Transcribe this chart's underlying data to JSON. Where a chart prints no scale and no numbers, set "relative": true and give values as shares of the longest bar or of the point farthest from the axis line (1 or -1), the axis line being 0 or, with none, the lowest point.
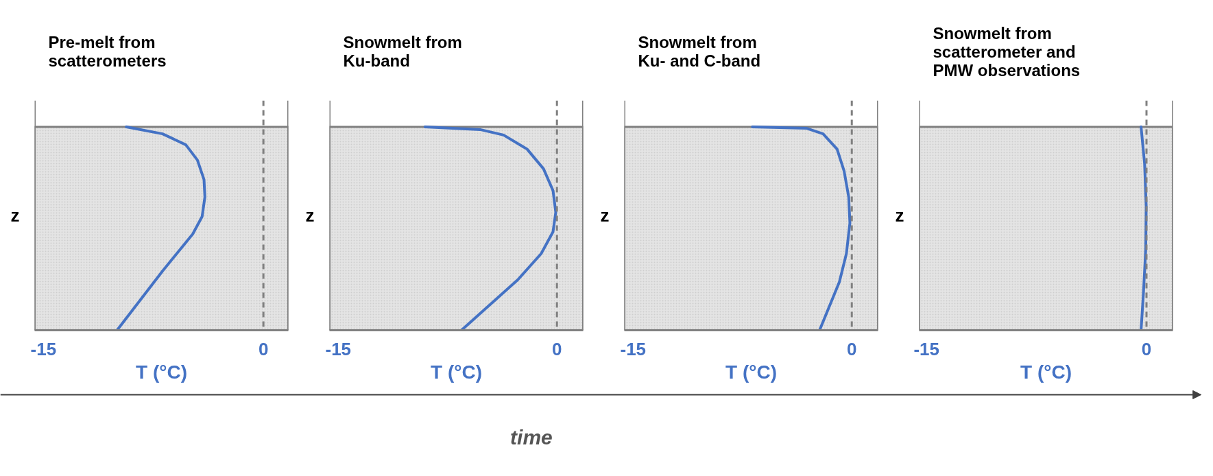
{
  "chart_data": [
    {
      "type": "line",
      "title": "Pre-melt from\nscatterometers",
      "xlabel": "T (°C)",
      "ylabel": "z",
      "relative": true,
      "xlim": [
        -15.6,
        1.7
      ],
      "xticks": [
        -15,
        0
      ],
      "grid": false,
      "marker": "none",
      "line_style": "solid",
      "ref_lines": [
        {
          "axis": "x",
          "value": 0,
          "color": "#808080",
          "line_style": "dashed"
        }
      ],
      "bands": [
        {
          "axis": "y",
          "from": 0,
          "to": 1,
          "color": "#e4e4e4"
        }
      ],
      "series": [
        {
          "color": "#4472c4",
          "x": [
            -9.35,
            -6.88,
            -5.29,
            -4.5,
            -4.05,
            -3.99,
            -4.18,
            -4.82,
            -6.88,
            -9.98
          ],
          "values": [
            1.0,
            0.966,
            0.912,
            0.837,
            0.741,
            0.655,
            0.559,
            0.473,
            0.291,
            0.0
          ]
        }
      ]
    },
    {
      "type": "line",
      "title": "Snowmelt from\nKu-band",
      "xlabel": "T (°C)",
      "ylabel": "z",
      "relative": true,
      "xlim": [
        -15.6,
        1.8
      ],
      "xticks": [
        -15,
        0
      ],
      "grid": false,
      "marker": "none",
      "line_style": "solid",
      "ref_lines": [
        {
          "axis": "x",
          "value": 0,
          "color": "#808080",
          "line_style": "dashed"
        }
      ],
      "bands": [
        {
          "axis": "y",
          "from": 0,
          "to": 1,
          "color": "#e4e4e4"
        }
      ],
      "series": [
        {
          "color": "#4472c4",
          "x": [
            -9.05,
            -5.27,
            -3.66,
            -2.05,
            -0.92,
            -0.27,
            -0.08,
            -0.27,
            -1.08,
            -2.69,
            -6.55
          ],
          "values": [
            1.0,
            0.987,
            0.96,
            0.891,
            0.794,
            0.687,
            0.58,
            0.484,
            0.377,
            0.248,
            0.0
          ]
        }
      ]
    },
    {
      "type": "line",
      "title": "Snowmelt from\nKu- and C-band",
      "xlabel": "T (°C)",
      "ylabel": "z",
      "relative": true,
      "xlim": [
        -15.6,
        1.8
      ],
      "xticks": [
        -15,
        0
      ],
      "grid": false,
      "marker": "none",
      "line_style": "solid",
      "ref_lines": [
        {
          "axis": "x",
          "value": 0,
          "color": "#808080",
          "line_style": "dashed"
        }
      ],
      "bands": [
        {
          "axis": "y",
          "from": 0,
          "to": 1,
          "color": "#e4e4e4"
        }
      ],
      "series": [
        {
          "color": "#4472c4",
          "x": [
            -6.82,
            -3.09,
            -1.97,
            -1.01,
            -0.53,
            -0.21,
            -0.13,
            -0.37,
            -0.85,
            -2.21
          ],
          "values": [
            1.0,
            0.993,
            0.966,
            0.891,
            0.784,
            0.655,
            0.527,
            0.377,
            0.238,
            0.0
          ]
        }
      ]
    },
    {
      "type": "line",
      "title": "Snowmelt from\nscatterometer and\nPMW observations",
      "xlabel": "T (°C)",
      "ylabel": "z",
      "relative": true,
      "xlim": [
        -15.5,
        1.8
      ],
      "xticks": [
        -15,
        0
      ],
      "grid": false,
      "marker": "none",
      "line_style": "solid",
      "ref_lines": [
        {
          "axis": "x",
          "value": 0,
          "color": "#808080",
          "line_style": "dashed"
        }
      ],
      "bands": [
        {
          "axis": "y",
          "from": 0,
          "to": 1,
          "color": "#e4e4e4"
        }
      ],
      "series": [
        {
          "color": "#4472c4",
          "x": [
            -0.37,
            -0.13,
            -0.02,
            -0.05,
            -0.21,
            -0.37
          ],
          "values": [
            1.0,
            0.82,
            0.61,
            0.4,
            0.18,
            0.0
          ]
        }
      ]
    },
    {
      "type": "other",
      "annotations": [
        "time"
      ]
    }
  ]
}
